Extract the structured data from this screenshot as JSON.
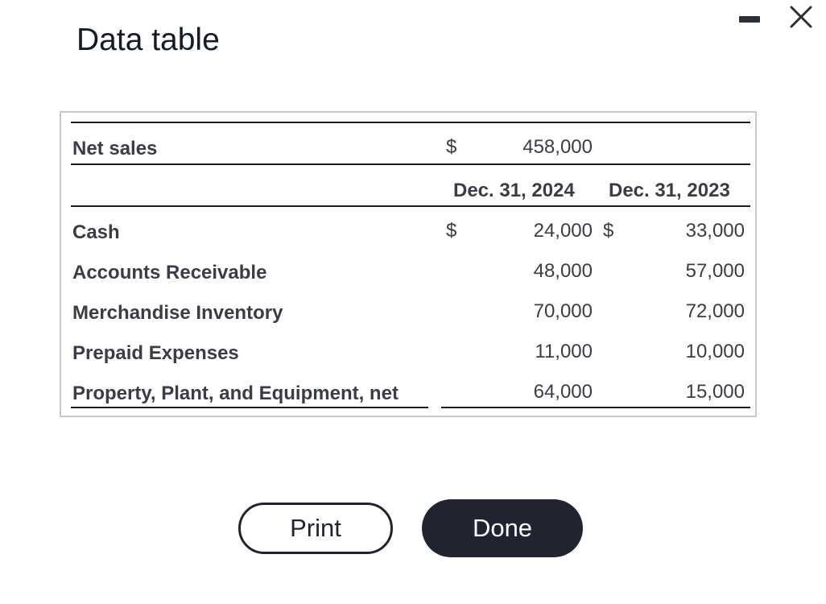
{
  "dialog": {
    "title": "Data table",
    "print_label": "Print",
    "done_label": "Done"
  },
  "table": {
    "net_sales": {
      "label": "Net sales",
      "currency": "$",
      "value": "458,000"
    },
    "columns": [
      "Dec. 31, 2024",
      "Dec. 31, 2023"
    ],
    "rows": [
      {
        "label": "Cash",
        "currency_a": "$",
        "a": "24,000",
        "currency_b": "$",
        "b": "33,000"
      },
      {
        "label": "Accounts Receivable",
        "a": "48,000",
        "b": "57,000"
      },
      {
        "label": "Merchandise Inventory",
        "a": "70,000",
        "b": "72,000"
      },
      {
        "label": "Prepaid Expenses",
        "a": "11,000",
        "b": "10,000"
      },
      {
        "label": "Property, Plant, and Equipment, net",
        "a": "64,000",
        "b": "15,000"
      }
    ]
  },
  "icons": {
    "minimize": "minimize-icon",
    "close": "close-icon"
  }
}
